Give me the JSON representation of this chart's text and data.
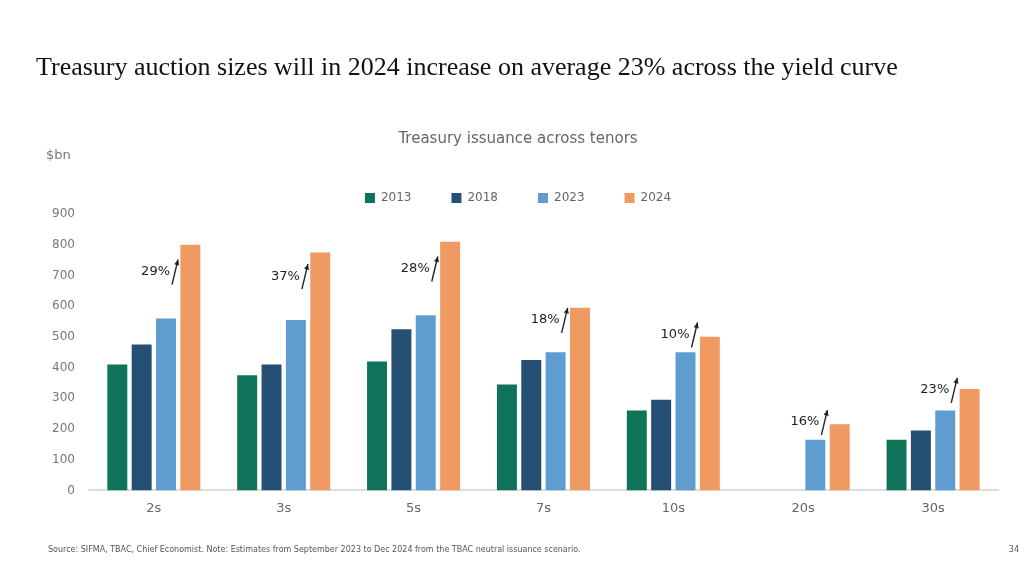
{
  "chart_data": {
    "type": "bar",
    "title": "Treasury auction sizes will in 2024 increase on average 23% across the yield curve",
    "subtitle": "Treasury issuance across tenors",
    "ylabel": "$bn",
    "categories": [
      "2s",
      "3s",
      "5s",
      "7s",
      "10s",
      "20s",
      "30s"
    ],
    "series": [
      {
        "name": "2013",
        "color": "#0f7359",
        "values": [
          410,
          375,
          420,
          345,
          260,
          null,
          165
        ]
      },
      {
        "name": "2018",
        "color": "#254f73",
        "values": [
          475,
          410,
          525,
          425,
          295,
          null,
          195
        ]
      },
      {
        "name": "2023",
        "color": "#5f9dd1",
        "values": [
          560,
          555,
          570,
          450,
          450,
          165,
          260
        ]
      },
      {
        "name": "2024",
        "color": "#ee9a62",
        "values": [
          800,
          775,
          810,
          595,
          500,
          215,
          330
        ]
      }
    ],
    "ylim": [
      0,
      900
    ],
    "yticks": [
      0,
      100,
      200,
      300,
      400,
      500,
      600,
      700,
      800,
      900
    ],
    "grid": false,
    "legend": "top",
    "annotations": [
      "29%",
      "37%",
      "28%",
      "18%",
      "10%",
      "16%",
      "23%",
      "Source: SIFMA, TBAC, Chief Economist. Note: Estimates from September 2023 to Dec 2024 from the TBAC neutral issuance scenario.",
      "34"
    ]
  }
}
